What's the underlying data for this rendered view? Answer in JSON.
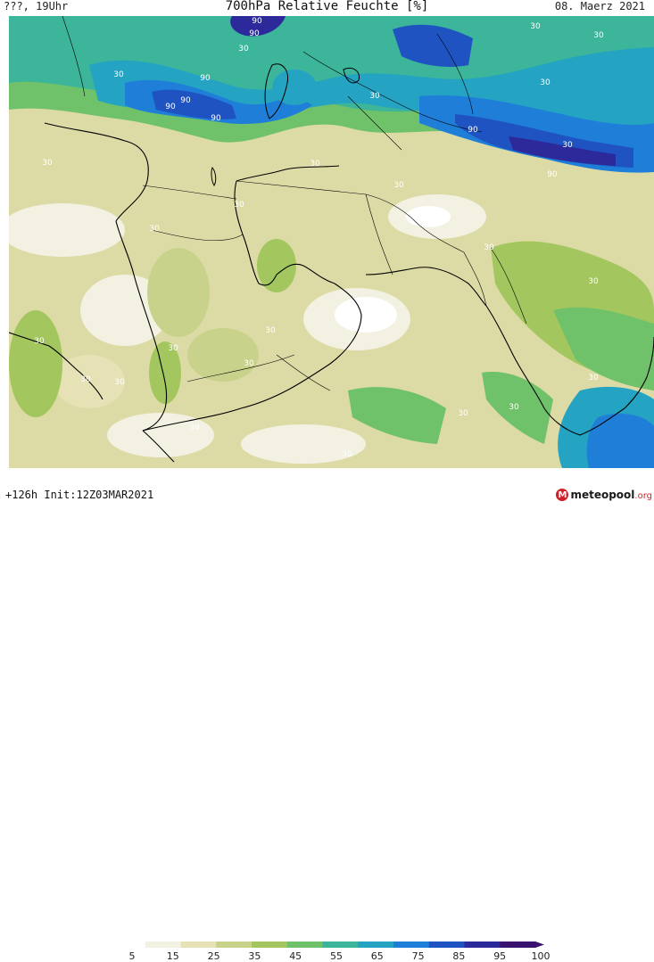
{
  "header": {
    "left": "???, 19Uhr",
    "title": "700hPa Relative Feuchte [%]",
    "date": "08. Maerz 2021"
  },
  "footer": {
    "run": "+126h  Init:12Z03MAR2021"
  },
  "legend": {
    "ticks": [
      "5",
      "15",
      "25",
      "35",
      "45",
      "55",
      "65",
      "75",
      "85",
      "95",
      "100"
    ],
    "colors": [
      "#ffffff",
      "#f3f1e2",
      "#e6e2b6",
      "#c8d28a",
      "#a3c75e",
      "#6fc16a",
      "#3cb59a",
      "#24a3c3",
      "#1e7ed8",
      "#1f53c2",
      "#2c2a9a",
      "#3a1270"
    ]
  },
  "logo": {
    "mark": "M",
    "name": "meteopool",
    "tld": ".org"
  },
  "contour_labels": [
    "30",
    "90"
  ],
  "colors": {
    "coast": "#000000",
    "label_text": "#ffffff"
  }
}
